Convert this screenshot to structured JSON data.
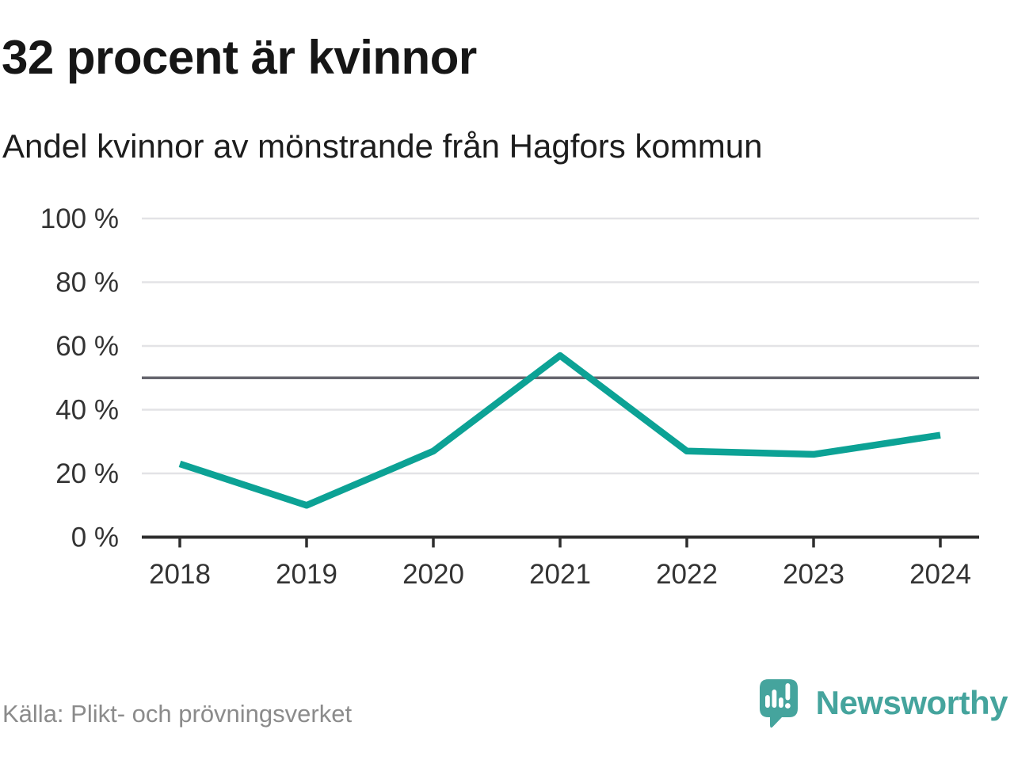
{
  "header": {
    "title": "32 procent är kvinnor",
    "subtitle": "Andel kvinnor av mönstrande från Hagfors kommun"
  },
  "footer": {
    "source": "Källa: Plikt- och prövningsverket",
    "brand": "Newsworthy"
  },
  "colors": {
    "line": "#0ca295",
    "grid": "#e3e3e6",
    "reference": "#66666e",
    "axis": "#2e2e2e",
    "tick_label": "#333333",
    "brand_teal": "#45a49d",
    "source_text": "#8b8b8b"
  },
  "chart_data": {
    "type": "line",
    "title": "32 procent är kvinnor",
    "subtitle": "Andel kvinnor av mönstrande från Hagfors kommun",
    "x": [
      2018,
      2019,
      2020,
      2021,
      2022,
      2023,
      2024
    ],
    "series": [
      {
        "name": "Andel kvinnor av mönstrande",
        "values": [
          23,
          10,
          27,
          57,
          27,
          26,
          32
        ]
      }
    ],
    "unit": "%",
    "ylim": [
      0,
      100
    ],
    "yticks": [
      0,
      20,
      40,
      60,
      80,
      100
    ],
    "ytick_suffix": " %",
    "reference_line": 50,
    "grid": true,
    "legend": "none",
    "xlabel": "",
    "ylabel": ""
  }
}
